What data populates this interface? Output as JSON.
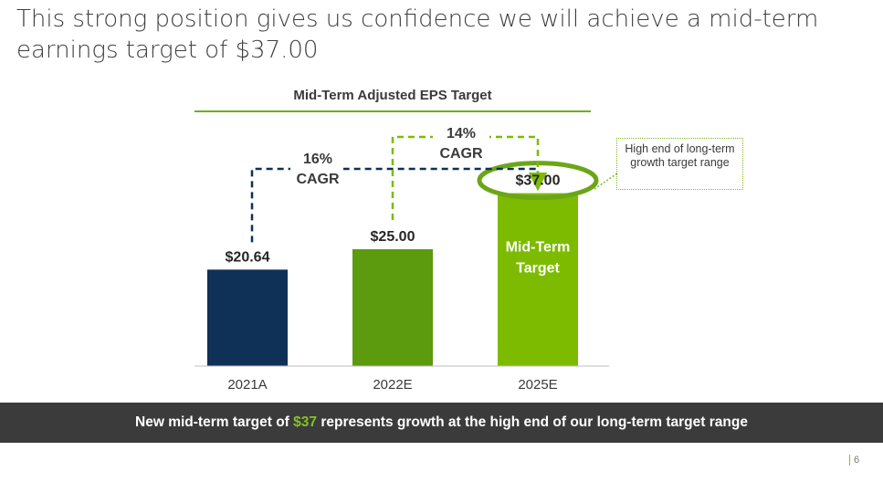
{
  "slide": {
    "title": "This strong position gives us confidence we will achieve a mid-term earnings target of $37.00",
    "page_number": "6"
  },
  "callout": {
    "text": "High end of long-term growth target range"
  },
  "banner": {
    "prefix": "New mid-term target of ",
    "highlight": "$37",
    "suffix": " represents growth at the high end of our long-term target range"
  },
  "colors": {
    "navy": "#0f3057",
    "green_dark": "#5c9a0e",
    "green_light": "#7dbb00",
    "banner_bg": "#3b3b3b"
  },
  "chart_data": {
    "type": "bar",
    "title": "Mid-Term Adjusted EPS Target",
    "categories": [
      "2021A",
      "2022E",
      "2025E"
    ],
    "values": [
      20.64,
      25.0,
      37.0
    ],
    "value_labels": [
      "$20.64",
      "$25.00",
      "$37.00"
    ],
    "bar_colors": [
      "#0f3057",
      "#5c9a0e",
      "#7dbb00"
    ],
    "bar_inner_label": {
      "index": 2,
      "lines": [
        "Mid-Term",
        "Target"
      ]
    },
    "ylim": [
      0,
      42
    ],
    "annotations": [
      {
        "label_lines": [
          "16%",
          "CAGR"
        ],
        "from": "2021A",
        "to": "2025E",
        "style": "dashed",
        "color": "#0f3057"
      },
      {
        "label_lines": [
          "14%",
          "CAGR"
        ],
        "from": "2022E",
        "to": "2025E",
        "style": "dashed",
        "color": "#7dbb00"
      }
    ],
    "highlight": {
      "index": 2,
      "shape": "ellipse",
      "color": "#6aa617"
    }
  }
}
